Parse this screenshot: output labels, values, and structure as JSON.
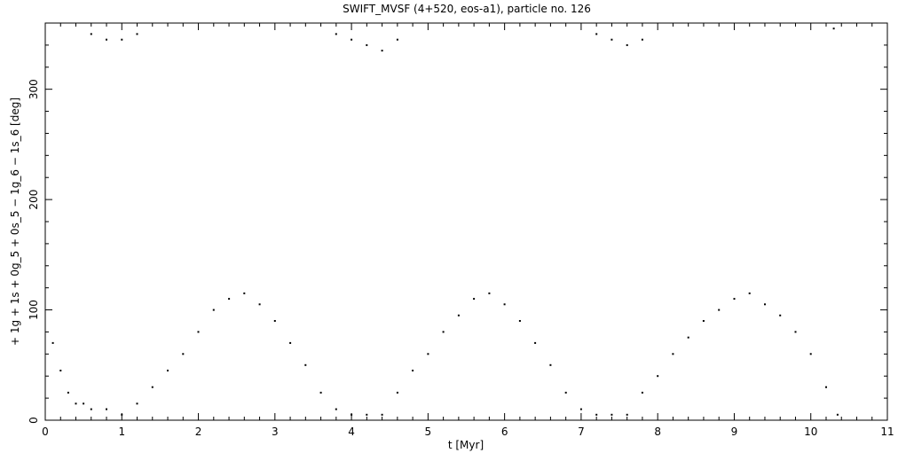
{
  "chart_data": {
    "type": "scatter",
    "title": "SWIFT_MVSF (4+520, eos-a1), particle no. 126",
    "xlabel": "t [Myr]",
    "ylabel": "+ 1g + 1s + 0g_5 + 0s_5 − 1g_6 − 1s_6 [deg]",
    "xlim": [
      0,
      11
    ],
    "ylim": [
      0,
      360
    ],
    "x_ticks": [
      "0",
      "1",
      "2",
      "3",
      "4",
      "5",
      "6",
      "7",
      "8",
      "9",
      "10",
      "11"
    ],
    "y_ticks": [
      "0",
      "100",
      "200",
      "300"
    ],
    "grid": false,
    "marker_color": "#000000",
    "series": [
      {
        "values_description_points": [
          [
            0.1,
            70
          ],
          [
            0.2,
            45
          ],
          [
            0.3,
            25
          ],
          [
            0.4,
            15
          ],
          [
            0.5,
            15
          ],
          [
            0.6,
            10
          ],
          [
            0.8,
            10
          ],
          [
            1.0,
            5
          ],
          [
            1.2,
            15
          ],
          [
            1.4,
            30
          ],
          [
            1.6,
            45
          ],
          [
            1.8,
            60
          ],
          [
            2.0,
            80
          ],
          [
            2.2,
            100
          ],
          [
            2.4,
            110
          ],
          [
            2.6,
            115
          ],
          [
            2.8,
            105
          ],
          [
            3.0,
            90
          ],
          [
            3.2,
            70
          ],
          [
            3.4,
            50
          ],
          [
            3.6,
            25
          ],
          [
            3.8,
            10
          ],
          [
            4.0,
            5
          ],
          [
            4.2,
            5
          ],
          [
            4.4,
            5
          ],
          [
            4.6,
            25
          ],
          [
            4.8,
            45
          ],
          [
            5.0,
            60
          ],
          [
            5.2,
            80
          ],
          [
            5.4,
            95
          ],
          [
            5.6,
            110
          ],
          [
            5.8,
            115
          ],
          [
            6.0,
            105
          ],
          [
            6.2,
            90
          ],
          [
            6.4,
            70
          ],
          [
            6.6,
            50
          ],
          [
            6.8,
            25
          ],
          [
            7.0,
            10
          ],
          [
            7.2,
            5
          ],
          [
            7.4,
            5
          ],
          [
            7.6,
            5
          ],
          [
            7.8,
            25
          ],
          [
            8.0,
            40
          ],
          [
            8.2,
            60
          ],
          [
            8.4,
            75
          ],
          [
            8.6,
            90
          ],
          [
            8.8,
            100
          ],
          [
            9.0,
            110
          ],
          [
            9.2,
            115
          ],
          [
            9.4,
            105
          ],
          [
            9.6,
            95
          ],
          [
            9.8,
            80
          ],
          [
            10.0,
            60
          ],
          [
            10.2,
            30
          ],
          [
            10.35,
            5
          ],
          [
            0.6,
            350
          ],
          [
            0.8,
            345
          ],
          [
            1.0,
            345
          ],
          [
            1.2,
            350
          ],
          [
            3.8,
            350
          ],
          [
            4.0,
            345
          ],
          [
            4.2,
            340
          ],
          [
            4.4,
            335
          ],
          [
            4.6,
            345
          ],
          [
            7.2,
            350
          ],
          [
            7.4,
            345
          ],
          [
            7.6,
            340
          ],
          [
            7.8,
            345
          ],
          [
            10.3,
            355
          ]
        ]
      }
    ]
  }
}
